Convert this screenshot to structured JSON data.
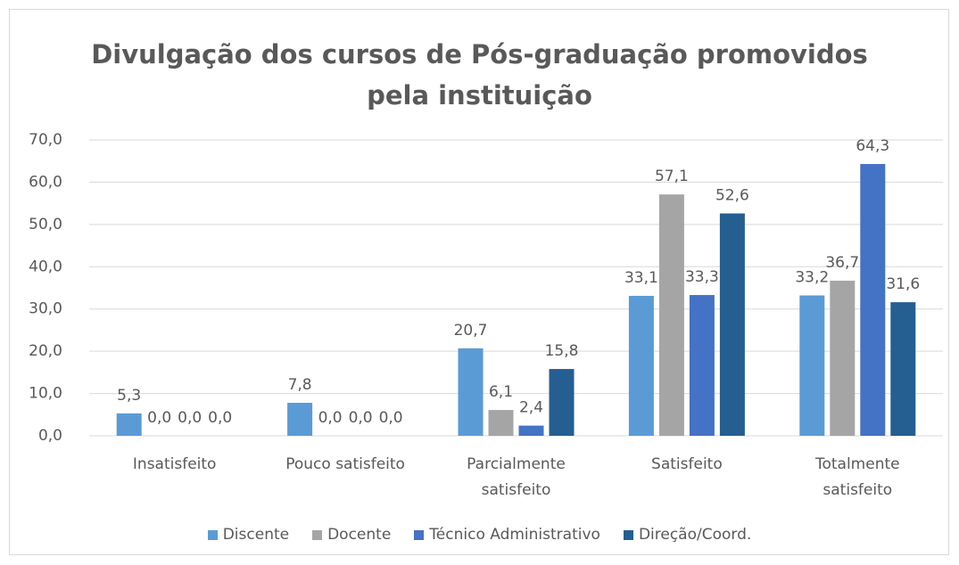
{
  "chart_data": {
    "type": "bar",
    "title": "Divulgação dos cursos de Pós-graduação promovidos pela instituição",
    "categories": [
      "Insatisfeito",
      "Pouco satisfeito",
      "Parcialmente satisfeito",
      "Satisfeito",
      "Totalmente satisfeito"
    ],
    "series": [
      {
        "name": "Discente",
        "color": "#5b9bd5",
        "values": [
          5.3,
          7.8,
          20.7,
          33.1,
          33.2
        ],
        "value_labels": [
          "5,3",
          "7,8",
          "20,7",
          "33,1",
          "33,2"
        ]
      },
      {
        "name": "Docente",
        "color": "#a5a5a5",
        "values": [
          0.0,
          0.0,
          6.1,
          57.1,
          36.7
        ],
        "value_labels": [
          "0,0",
          "0,0",
          "6,1",
          "57,1",
          "36,7"
        ]
      },
      {
        "name": "Técnico Administrativo",
        "color": "#4472c4",
        "values": [
          0.0,
          0.0,
          2.4,
          33.3,
          64.3
        ],
        "value_labels": [
          "0,0",
          "0,0",
          "2,4",
          "33,3",
          "64,3"
        ]
      },
      {
        "name": "Direção/Coord.",
        "color": "#255e91",
        "values": [
          0.0,
          0.0,
          15.8,
          52.6,
          31.6
        ],
        "value_labels": [
          "0,0",
          "0,0",
          "15,8",
          "52,6",
          "31,6"
        ]
      }
    ],
    "ylim": [
      0,
      70
    ],
    "yticks": [
      {
        "value": 0,
        "label": "0,0"
      },
      {
        "value": 10,
        "label": "10,0"
      },
      {
        "value": 20,
        "label": "20,0"
      },
      {
        "value": 30,
        "label": "30,0"
      },
      {
        "value": 40,
        "label": "40,0"
      },
      {
        "value": 50,
        "label": "50,0"
      },
      {
        "value": 60,
        "label": "60,0"
      },
      {
        "value": 70,
        "label": "70,0"
      }
    ],
    "grid": true,
    "legend": "bottom"
  }
}
